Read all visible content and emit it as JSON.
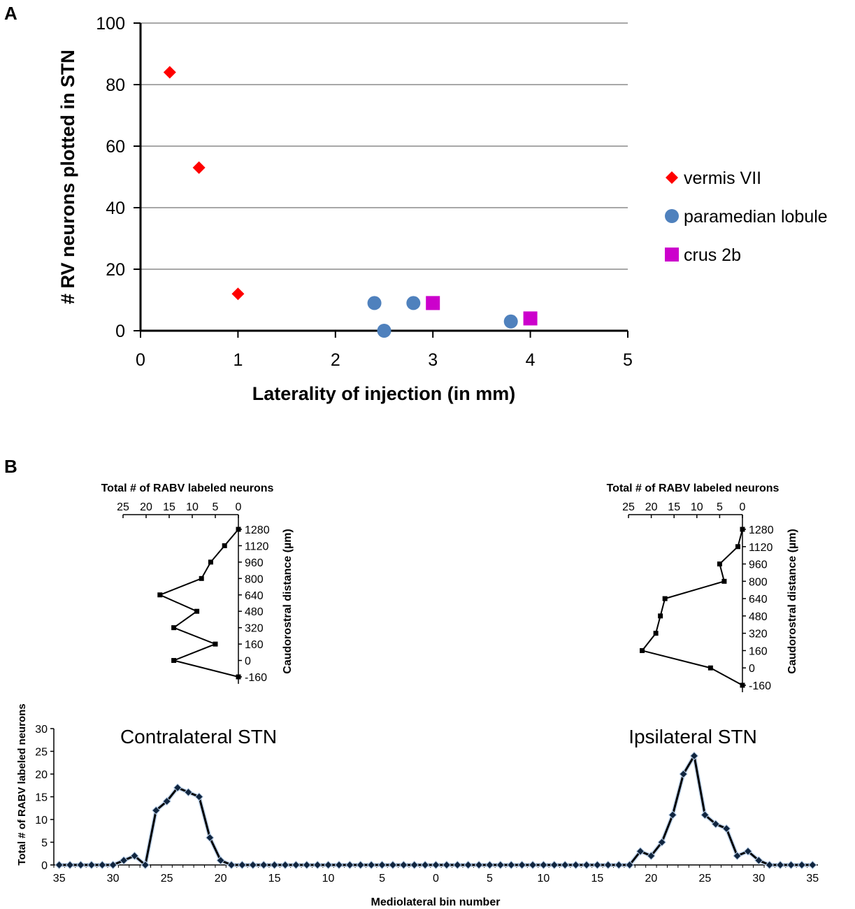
{
  "panel_a": {
    "label": "A",
    "chart_data": {
      "type": "scatter",
      "xlabel": "Laterality of injection (in mm)",
      "ylabel": "# RV neurons plotted in STN",
      "xlim": [
        0,
        5
      ],
      "ylim": [
        0,
        100
      ],
      "xticks": [
        "0",
        "1",
        "2",
        "3",
        "4",
        "5"
      ],
      "yticks": [
        "0",
        "20",
        "40",
        "60",
        "80",
        "100"
      ],
      "grid": true,
      "legend_position": "right",
      "series": [
        {
          "name": "vermis VII",
          "marker": "diamond",
          "color": "#ff0000",
          "points": [
            [
              0.3,
              84
            ],
            [
              0.6,
              53
            ],
            [
              1.0,
              12
            ]
          ]
        },
        {
          "name": "paramedian lobule",
          "marker": "circle",
          "color": "#4f81bd",
          "points": [
            [
              2.4,
              9
            ],
            [
              2.5,
              0
            ],
            [
              2.8,
              9
            ],
            [
              3.8,
              3
            ]
          ]
        },
        {
          "name": "crus 2b",
          "marker": "square",
          "color": "#cc00cc",
          "points": [
            [
              3.0,
              9
            ],
            [
              4.0,
              4
            ]
          ]
        }
      ]
    }
  },
  "panel_b": {
    "label": "B",
    "left_profile": {
      "chart_data": {
        "type": "line",
        "title": "Total # of RABV labeled neurons",
        "ylabel": "Caudorostral distance (µm)",
        "xticks": [
          "25",
          "20",
          "15",
          "10",
          "5",
          "0"
        ],
        "yticks": [
          "1280",
          "1120",
          "960",
          "800",
          "640",
          "480",
          "320",
          "160",
          "0",
          "-160"
        ],
        "xlim": [
          0,
          25
        ],
        "ylim": [
          -160,
          1280
        ],
        "x": [
          0,
          3,
          6,
          8,
          17,
          9,
          14,
          5,
          14,
          0
        ],
        "y": [
          1280,
          1120,
          960,
          800,
          640,
          480,
          320,
          160,
          0,
          -160
        ]
      }
    },
    "right_profile": {
      "chart_data": {
        "type": "line",
        "title": "Total # of RABV labeled neurons",
        "ylabel": "Caudorostral distance (µm)",
        "xticks": [
          "25",
          "20",
          "15",
          "10",
          "5",
          "0"
        ],
        "yticks": [
          "1280",
          "1120",
          "960",
          "800",
          "640",
          "480",
          "320",
          "160",
          "0",
          "-160"
        ],
        "xlim": [
          0,
          25
        ],
        "ylim": [
          -160,
          1280
        ],
        "x": [
          0,
          1,
          5,
          4,
          17,
          18,
          19,
          22,
          7,
          0
        ],
        "y": [
          1280,
          1120,
          960,
          800,
          640,
          480,
          320,
          160,
          0,
          -160
        ]
      }
    },
    "bottom": {
      "chart_data": {
        "type": "line",
        "xlabel": "Mediolateral bin number",
        "ylabel": "Total # of RABV labeled neurons",
        "ylim": [
          0,
          30
        ],
        "yticks": [
          "0",
          "5",
          "10",
          "15",
          "20",
          "25",
          "30"
        ],
        "xticks": [
          "35",
          "30",
          "25",
          "20",
          "15",
          "10",
          "5",
          "0",
          "5",
          "10",
          "15",
          "20",
          "25",
          "30",
          "35"
        ],
        "contralateral_label": "Contralateral STN",
        "ipsilateral_label": "Ipsilateral STN",
        "x": [
          -35,
          -34,
          -33,
          -32,
          -31,
          -30,
          -29,
          -28,
          -27,
          -26,
          -25,
          -24,
          -23,
          -22,
          -21,
          -20,
          -19,
          -18,
          -17,
          -16,
          -15,
          -14,
          -13,
          -12,
          -11,
          -10,
          -9,
          -8,
          -7,
          -6,
          -5,
          -4,
          -3,
          -2,
          -1,
          0,
          1,
          2,
          3,
          4,
          5,
          6,
          7,
          8,
          9,
          10,
          11,
          12,
          13,
          14,
          15,
          16,
          17,
          18,
          19,
          20,
          21,
          22,
          23,
          24,
          25,
          26,
          27,
          28,
          29,
          30,
          31,
          32,
          33,
          34,
          35
        ],
        "values": [
          0,
          0,
          0,
          0,
          0,
          0,
          1,
          2,
          0,
          12,
          14,
          17,
          16,
          15,
          6,
          1,
          0,
          0,
          0,
          0,
          0,
          0,
          0,
          0,
          0,
          0,
          0,
          0,
          0,
          0,
          0,
          0,
          0,
          0,
          0,
          0,
          0,
          0,
          0,
          0,
          0,
          0,
          0,
          0,
          0,
          0,
          0,
          0,
          0,
          0,
          0,
          0,
          0,
          0,
          3,
          2,
          5,
          11,
          20,
          24,
          11,
          9,
          8,
          2,
          3,
          1,
          0,
          0,
          0,
          0,
          0
        ]
      }
    }
  }
}
